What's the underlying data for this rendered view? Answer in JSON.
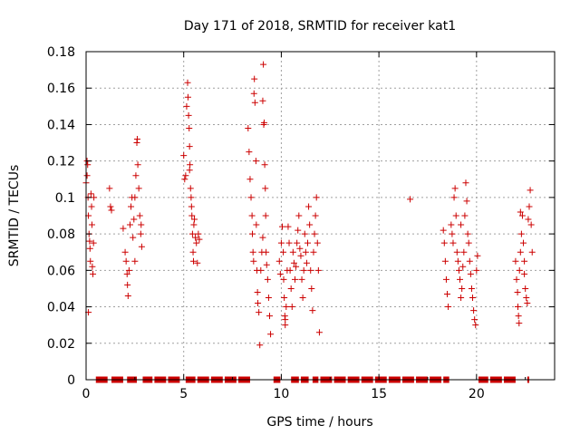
{
  "chart_data": {
    "type": "scatter",
    "title": "Day 171 of 2018, SRMTID for receiver kat1",
    "xlabel": "GPS time / hours",
    "ylabel": "SRMTID / TECUs",
    "xlim": [
      0,
      24
    ],
    "ylim": [
      0,
      0.18
    ],
    "xticks": [
      "0",
      "5",
      "10",
      "15",
      "20"
    ],
    "yticks": [
      "0",
      "0.02",
      "0.04",
      "0.06",
      "0.08",
      "0.1",
      "0.12",
      "0.14",
      "0.16",
      "0.18"
    ],
    "grid": true,
    "legend": "none",
    "marker": "+",
    "color": "#cc0000",
    "series": [
      {
        "values": [
          [
            0.0,
            0.108
          ],
          [
            0.05,
            0.112
          ],
          [
            0.08,
            0.118
          ],
          [
            0.1,
            0.1
          ],
          [
            0.12,
            0.09
          ],
          [
            0.15,
            0.08
          ],
          [
            0.18,
            0.076
          ],
          [
            0.2,
            0.072
          ],
          [
            0.22,
            0.065
          ],
          [
            0.25,
            0.102
          ],
          [
            0.28,
            0.095
          ],
          [
            0.3,
            0.085
          ],
          [
            0.32,
            0.062
          ],
          [
            0.35,
            0.058
          ],
          [
            0.38,
            0.075
          ],
          [
            0.4,
            0.1
          ],
          [
            0.12,
            0.037
          ],
          [
            0.05,
            0.12
          ],
          [
            1.2,
            0.105
          ],
          [
            1.25,
            0.095
          ],
          [
            1.3,
            0.093
          ],
          [
            1.9,
            0.083
          ],
          [
            2.0,
            0.07
          ],
          [
            2.05,
            0.065
          ],
          [
            2.1,
            0.058
          ],
          [
            2.12,
            0.052
          ],
          [
            2.15,
            0.046
          ],
          [
            2.2,
            0.06
          ],
          [
            2.25,
            0.085
          ],
          [
            2.3,
            0.095
          ],
          [
            2.35,
            0.1
          ],
          [
            2.4,
            0.078
          ],
          [
            2.45,
            0.088
          ],
          [
            2.5,
            0.1
          ],
          [
            2.55,
            0.112
          ],
          [
            2.6,
            0.13
          ],
          [
            2.62,
            0.132
          ],
          [
            2.65,
            0.118
          ],
          [
            2.7,
            0.105
          ],
          [
            2.75,
            0.09
          ],
          [
            2.8,
            0.08
          ],
          [
            2.82,
            0.085
          ],
          [
            2.85,
            0.073
          ],
          [
            2.5,
            0.065
          ],
          [
            5.0,
            0.123
          ],
          [
            5.05,
            0.11
          ],
          [
            5.1,
            0.112
          ],
          [
            5.15,
            0.15
          ],
          [
            5.2,
            0.163
          ],
          [
            5.22,
            0.155
          ],
          [
            5.25,
            0.145
          ],
          [
            5.28,
            0.138
          ],
          [
            5.3,
            0.128
          ],
          [
            5.32,
            0.118
          ],
          [
            5.35,
            0.105
          ],
          [
            5.38,
            0.1
          ],
          [
            5.4,
            0.095
          ],
          [
            5.42,
            0.09
          ],
          [
            5.45,
            0.08
          ],
          [
            5.48,
            0.07
          ],
          [
            5.5,
            0.065
          ],
          [
            5.52,
            0.085
          ],
          [
            5.55,
            0.088
          ],
          [
            5.6,
            0.078
          ],
          [
            5.65,
            0.075
          ],
          [
            5.7,
            0.064
          ],
          [
            5.75,
            0.08
          ],
          [
            5.8,
            0.077
          ],
          [
            5.3,
            0.115
          ],
          [
            8.3,
            0.138
          ],
          [
            8.35,
            0.125
          ],
          [
            8.4,
            0.11
          ],
          [
            8.45,
            0.1
          ],
          [
            8.5,
            0.09
          ],
          [
            8.52,
            0.08
          ],
          [
            8.55,
            0.07
          ],
          [
            8.58,
            0.065
          ],
          [
            8.6,
            0.157
          ],
          [
            8.62,
            0.165
          ],
          [
            8.65,
            0.152
          ],
          [
            8.7,
            0.12
          ],
          [
            8.72,
            0.085
          ],
          [
            8.75,
            0.06
          ],
          [
            8.78,
            0.048
          ],
          [
            8.8,
            0.042
          ],
          [
            8.85,
            0.037
          ],
          [
            8.9,
            0.019
          ],
          [
            8.95,
            0.06
          ],
          [
            9.0,
            0.07
          ],
          [
            9.05,
            0.153
          ],
          [
            9.08,
            0.173
          ],
          [
            9.1,
            0.14
          ],
          [
            9.12,
            0.141
          ],
          [
            9.15,
            0.118
          ],
          [
            9.18,
            0.105
          ],
          [
            9.2,
            0.09
          ],
          [
            9.22,
            0.07
          ],
          [
            9.25,
            0.063
          ],
          [
            9.3,
            0.055
          ],
          [
            9.35,
            0.045
          ],
          [
            9.4,
            0.035
          ],
          [
            9.45,
            0.025
          ],
          [
            9.05,
            0.078
          ],
          [
            9.9,
            0.065
          ],
          [
            9.95,
            0.058
          ],
          [
            10.0,
            0.075
          ],
          [
            10.05,
            0.084
          ],
          [
            10.1,
            0.07
          ],
          [
            10.12,
            0.055
          ],
          [
            10.15,
            0.045
          ],
          [
            10.18,
            0.035
          ],
          [
            10.2,
            0.03
          ],
          [
            10.25,
            0.04
          ],
          [
            10.3,
            0.06
          ],
          [
            10.35,
            0.084
          ],
          [
            10.4,
            0.075
          ],
          [
            10.45,
            0.06
          ],
          [
            10.5,
            0.05
          ],
          [
            10.55,
            0.04
          ],
          [
            10.6,
            0.07
          ],
          [
            10.65,
            0.064
          ],
          [
            10.7,
            0.055
          ],
          [
            10.75,
            0.062
          ],
          [
            10.8,
            0.075
          ],
          [
            10.85,
            0.082
          ],
          [
            10.9,
            0.09
          ],
          [
            10.95,
            0.072
          ],
          [
            11.0,
            0.068
          ],
          [
            11.05,
            0.055
          ],
          [
            11.1,
            0.045
          ],
          [
            11.15,
            0.06
          ],
          [
            11.2,
            0.08
          ],
          [
            11.25,
            0.07
          ],
          [
            11.3,
            0.064
          ],
          [
            11.35,
            0.075
          ],
          [
            11.4,
            0.095
          ],
          [
            11.45,
            0.085
          ],
          [
            11.5,
            0.06
          ],
          [
            11.55,
            0.05
          ],
          [
            11.6,
            0.038
          ],
          [
            11.65,
            0.07
          ],
          [
            11.7,
            0.08
          ],
          [
            11.75,
            0.09
          ],
          [
            11.8,
            0.1
          ],
          [
            11.85,
            0.075
          ],
          [
            11.9,
            0.06
          ],
          [
            11.95,
            0.026
          ],
          [
            10.2,
            0.033
          ],
          [
            16.6,
            0.099
          ],
          [
            18.3,
            0.082
          ],
          [
            18.35,
            0.075
          ],
          [
            18.4,
            0.065
          ],
          [
            18.45,
            0.055
          ],
          [
            18.5,
            0.047
          ],
          [
            18.55,
            0.04
          ],
          [
            18.7,
            0.085
          ],
          [
            18.75,
            0.08
          ],
          [
            18.8,
            0.075
          ],
          [
            18.85,
            0.1
          ],
          [
            18.9,
            0.105
          ],
          [
            18.95,
            0.09
          ],
          [
            19.0,
            0.07
          ],
          [
            19.05,
            0.065
          ],
          [
            19.1,
            0.06
          ],
          [
            19.15,
            0.055
          ],
          [
            19.2,
            0.045
          ],
          [
            19.25,
            0.05
          ],
          [
            19.3,
            0.062
          ],
          [
            19.35,
            0.07
          ],
          [
            19.4,
            0.09
          ],
          [
            19.45,
            0.108
          ],
          [
            19.5,
            0.098
          ],
          [
            19.55,
            0.08
          ],
          [
            19.6,
            0.075
          ],
          [
            19.65,
            0.065
          ],
          [
            19.7,
            0.058
          ],
          [
            19.75,
            0.05
          ],
          [
            19.8,
            0.045
          ],
          [
            19.85,
            0.038
          ],
          [
            19.9,
            0.033
          ],
          [
            19.95,
            0.03
          ],
          [
            20.0,
            0.06
          ],
          [
            20.05,
            0.068
          ],
          [
            19.2,
            0.085
          ],
          [
            22.0,
            0.065
          ],
          [
            22.05,
            0.055
          ],
          [
            22.1,
            0.048
          ],
          [
            22.12,
            0.04
          ],
          [
            22.15,
            0.035
          ],
          [
            22.18,
            0.031
          ],
          [
            22.2,
            0.06
          ],
          [
            22.25,
            0.07
          ],
          [
            22.3,
            0.08
          ],
          [
            22.35,
            0.09
          ],
          [
            22.4,
            0.075
          ],
          [
            22.45,
            0.065
          ],
          [
            22.5,
            0.05
          ],
          [
            22.55,
            0.045
          ],
          [
            22.6,
            0.042
          ],
          [
            22.65,
            0.088
          ],
          [
            22.7,
            0.095
          ],
          [
            22.75,
            0.104
          ],
          [
            22.8,
            0.085
          ],
          [
            22.85,
            0.07
          ],
          [
            22.25,
            0.092
          ],
          [
            22.45,
            0.058
          ]
        ]
      },
      {
        "zero_segments": [
          [
            0.5,
            1.1
          ],
          [
            1.3,
            1.9
          ],
          [
            2.1,
            2.6
          ],
          [
            2.9,
            3.4
          ],
          [
            3.5,
            4.1
          ],
          [
            4.2,
            4.8
          ],
          [
            5.1,
            5.6
          ],
          [
            5.7,
            6.3
          ],
          [
            6.4,
            7.0
          ],
          [
            7.1,
            7.7
          ],
          [
            7.8,
            8.4
          ],
          [
            9.6,
            9.95
          ],
          [
            10.5,
            10.9
          ],
          [
            11.0,
            11.4
          ],
          [
            11.6,
            11.9
          ],
          [
            12.0,
            12.6
          ],
          [
            12.7,
            13.3
          ],
          [
            13.4,
            14.0
          ],
          [
            14.1,
            14.7
          ],
          [
            14.8,
            15.4
          ],
          [
            15.5,
            16.1
          ],
          [
            16.2,
            16.8
          ],
          [
            16.9,
            17.5
          ],
          [
            17.6,
            18.2
          ],
          [
            18.3,
            18.6
          ],
          [
            20.1,
            20.6
          ],
          [
            20.7,
            21.3
          ],
          [
            21.4,
            22.0
          ],
          [
            22.6,
            22.7
          ]
        ]
      }
    ]
  }
}
